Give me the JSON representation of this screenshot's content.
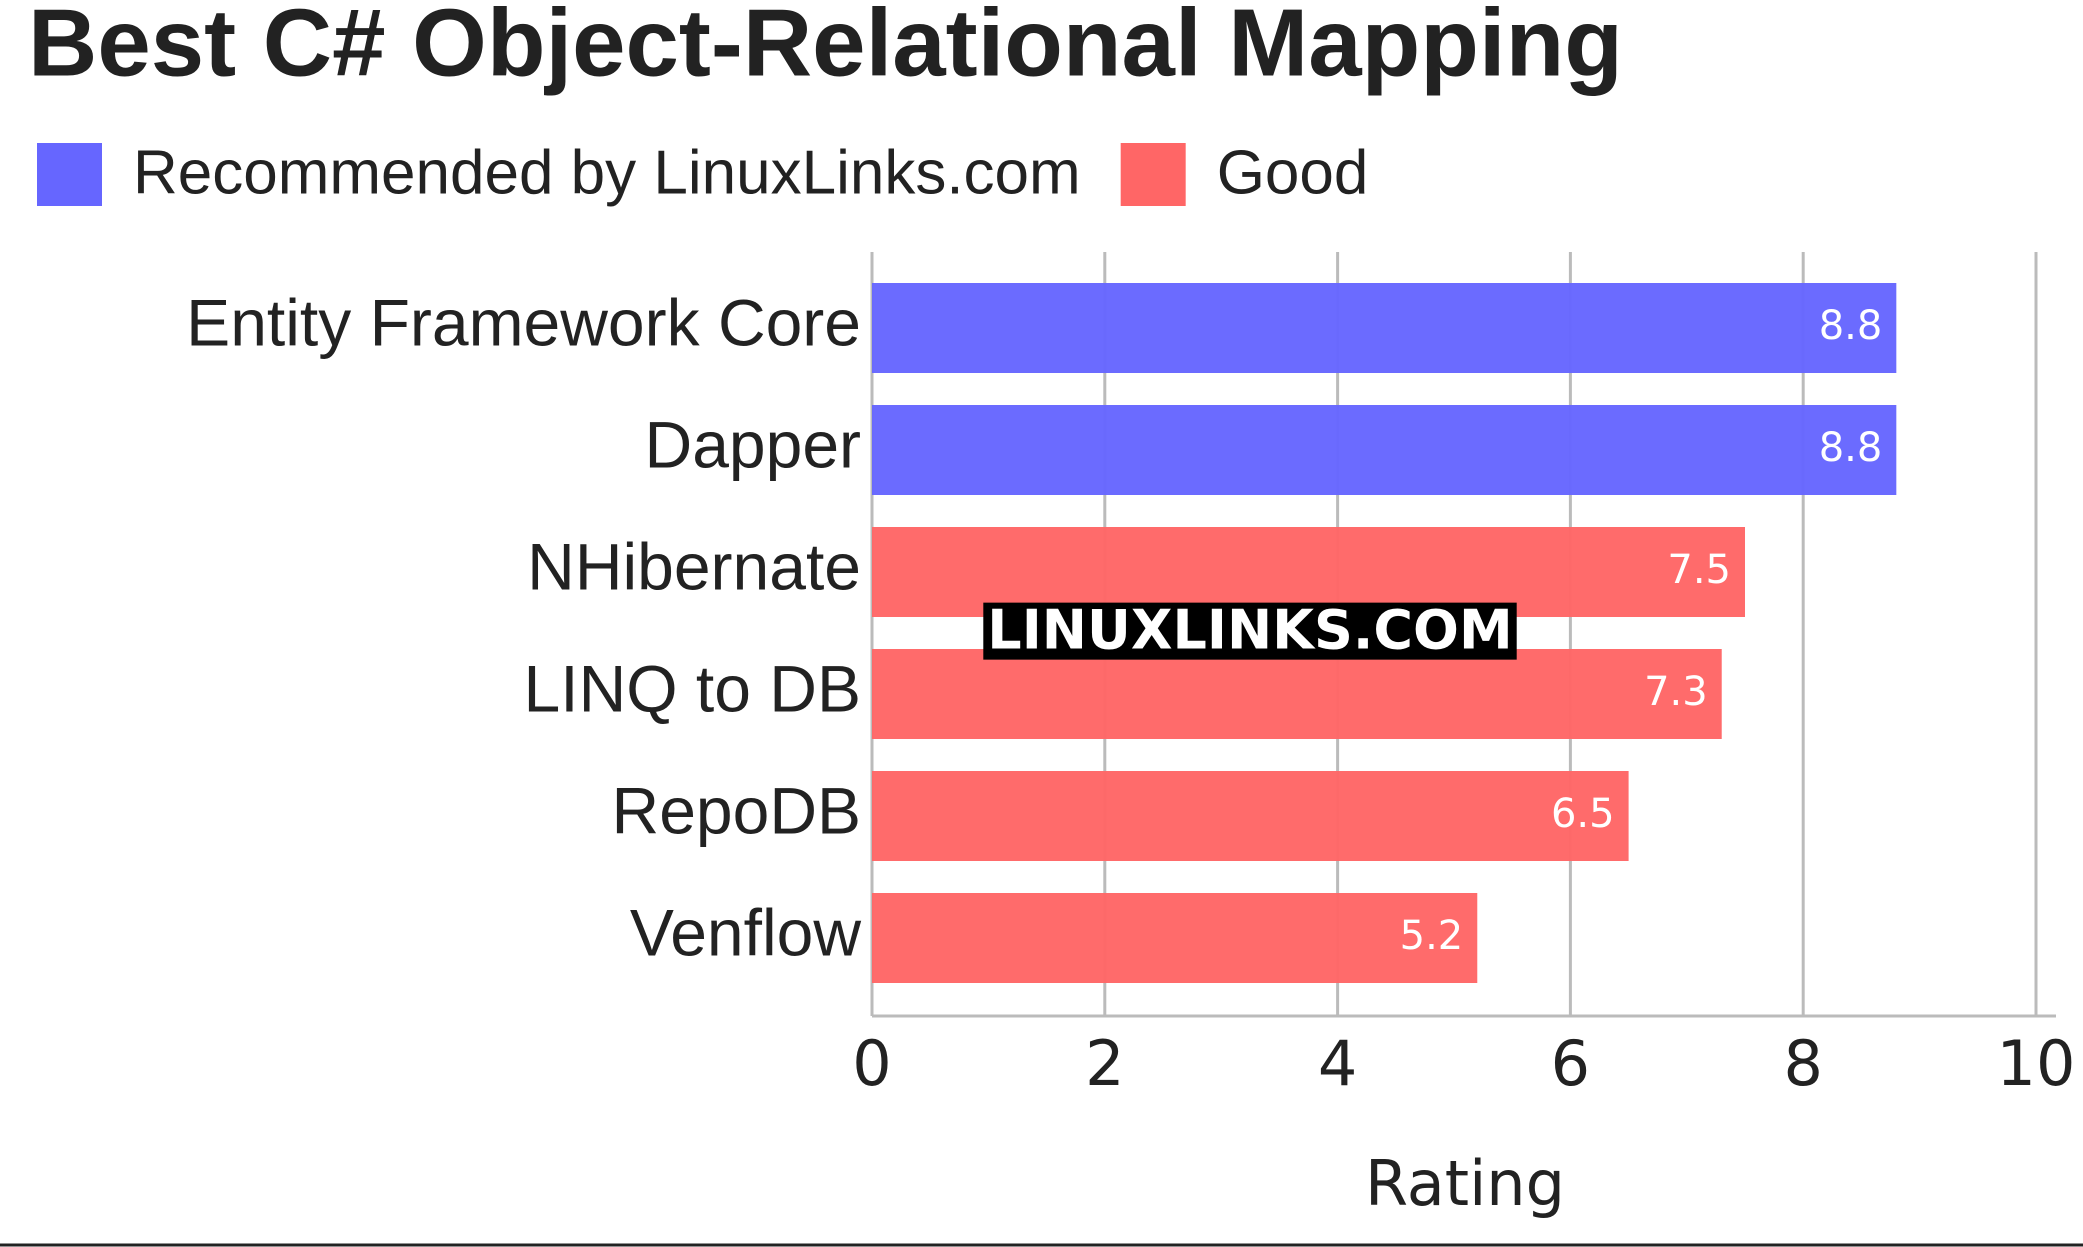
{
  "chart_data": {
    "type": "bar",
    "orientation": "horizontal",
    "title": "Best C# Object-Relational Mapping",
    "categories": [
      "Entity Framework Core",
      "Dapper",
      "NHibernate",
      "LINQ to DB",
      "RepoDB",
      "Venflow"
    ],
    "series": [
      {
        "name": "Recommended by LinuxLinks.com",
        "color": "#6666ff",
        "values": [
          8.8,
          8.8,
          null,
          null,
          null,
          null
        ]
      },
      {
        "name": "Good",
        "color": "#ff6666",
        "values": [
          null,
          null,
          7.5,
          7.3,
          6.5,
          5.2
        ]
      }
    ],
    "xlabel": "Rating",
    "xlim": [
      0,
      10
    ],
    "xticks": [
      0,
      2,
      4,
      6,
      8,
      10
    ],
    "grid": true,
    "annotation": "LINUXLINKS.COM"
  }
}
